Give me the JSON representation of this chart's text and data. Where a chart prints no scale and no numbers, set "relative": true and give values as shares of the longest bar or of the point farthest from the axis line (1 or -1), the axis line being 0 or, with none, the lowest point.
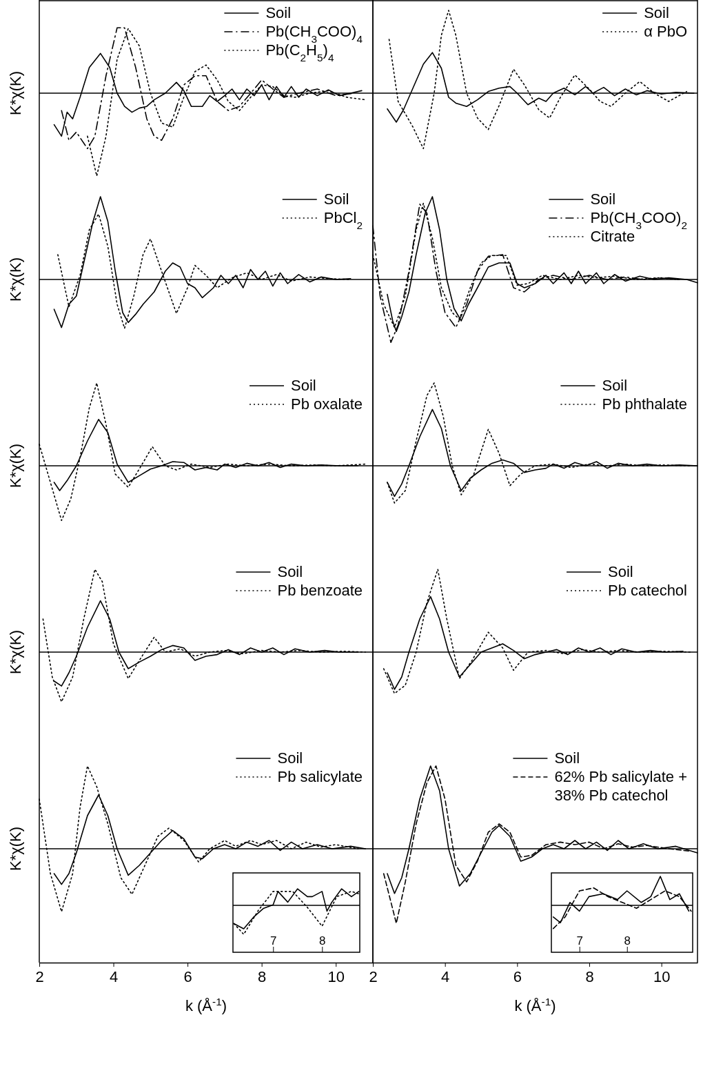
{
  "chart_data": [
    {
      "type": "line",
      "relative": true,
      "ylabel": "K*χ(K)",
      "xlim": [
        2,
        11
      ],
      "tick_labels": false,
      "legend": "top right",
      "series": [
        {
          "name": "Soil",
          "color": "#000000",
          "line_style": "solid",
          "x": [
            2.4,
            2.6,
            2.75,
            2.9,
            3.1,
            3.35,
            3.65,
            3.9,
            4.1,
            4.3,
            4.5,
            4.7,
            4.9,
            5.1,
            5.4,
            5.7,
            5.9,
            6.1,
            6.4,
            6.6,
            6.8,
            7.0,
            7.2,
            7.4,
            7.6,
            7.8,
            8.0,
            8.2,
            8.4,
            8.6,
            8.8,
            9.0,
            9.2,
            9.5,
            9.8,
            10.1,
            10.4,
            10.7
          ],
          "values": [
            -0.38,
            -0.52,
            -0.23,
            -0.31,
            -0.05,
            0.31,
            0.48,
            0.31,
            0,
            -0.16,
            -0.23,
            -0.18,
            -0.16,
            -0.08,
            0,
            0.13,
            0.03,
            -0.16,
            -0.16,
            -0.03,
            -0.1,
            -0.03,
            0.05,
            -0.08,
            0.05,
            -0.03,
            0.1,
            -0.08,
            0.08,
            -0.05,
            0.08,
            -0.05,
            0.05,
            -0.03,
            0.04,
            -0.03,
            0,
            0.03
          ]
        },
        {
          "name": "Pb(CH$_{3}$COO)$_{4}$",
          "color": "#000000",
          "line_style": "dashdot",
          "x": [
            2.6,
            2.8,
            3.0,
            3.3,
            3.5,
            3.8,
            4.1,
            4.3,
            4.6,
            4.9,
            5.1,
            5.3,
            5.6,
            5.9,
            6.2,
            6.5,
            6.8,
            7.1,
            7.4,
            7.8,
            8.0,
            8.3,
            8.6,
            9.0,
            9.5,
            10.0,
            10.5
          ],
          "values": [
            -0.21,
            -0.57,
            -0.47,
            -0.67,
            -0.52,
            0.21,
            0.79,
            0.79,
            0.31,
            -0.31,
            -0.52,
            -0.57,
            -0.31,
            0.1,
            0.21,
            0.21,
            -0.1,
            -0.21,
            -0.16,
            0.05,
            0.16,
            0.05,
            -0.05,
            0,
            0.05,
            -0.03,
            0
          ]
        },
        {
          "name": "Pb(C$_{2}$H$_{5}$)$_{4}$",
          "color": "#000000",
          "line_style": "dotted",
          "x": [
            3.3,
            3.55,
            3.8,
            4.1,
            4.4,
            4.7,
            5.0,
            5.3,
            5.6,
            5.9,
            6.2,
            6.5,
            6.8,
            7.1,
            7.4,
            7.7,
            8.0,
            8.3,
            8.6,
            8.9,
            9.3,
            9.8,
            10.3,
            10.8
          ],
          "values": [
            -0.52,
            -1,
            -0.52,
            0.41,
            0.78,
            0.57,
            0,
            -0.36,
            -0.41,
            -0.05,
            0.26,
            0.34,
            0.16,
            -0.1,
            -0.21,
            -0.05,
            0.1,
            0.08,
            -0.03,
            -0.05,
            0,
            0.03,
            -0.05,
            -0.08
          ]
        }
      ]
    },
    {
      "type": "line",
      "relative": true,
      "xlim": [
        2,
        11
      ],
      "tick_labels": false,
      "legend": "top right",
      "series": [
        {
          "name": "Soil",
          "color": "#000000",
          "line_style": "solid",
          "x": [
            2.4,
            2.65,
            2.85,
            3.1,
            3.4,
            3.65,
            3.9,
            4.1,
            4.3,
            4.6,
            4.9,
            5.2,
            5.5,
            5.8,
            6.0,
            6.3,
            6.6,
            6.8,
            7.0,
            7.3,
            7.6,
            7.9,
            8.1,
            8.4,
            8.7,
            9.0,
            9.3,
            9.6,
            10.0,
            10.4,
            10.9
          ],
          "values": [
            -0.19,
            -0.35,
            -0.2,
            0.05,
            0.35,
            0.49,
            0.3,
            -0.05,
            -0.12,
            -0.16,
            -0.08,
            0.02,
            0.06,
            0.08,
            0,
            -0.14,
            -0.06,
            -0.1,
            0,
            0.06,
            -0.02,
            0.08,
            0,
            0.07,
            -0.03,
            0.05,
            -0.02,
            0.03,
            -0.01,
            0.01,
            0
          ]
        },
        {
          "name": "α PbO",
          "color": "#000000",
          "line_style": "dotted",
          "x": [
            2.45,
            2.7,
            3.1,
            3.4,
            3.7,
            3.9,
            4.1,
            4.3,
            4.6,
            4.9,
            5.2,
            5.5,
            5.9,
            6.2,
            6.6,
            6.9,
            7.2,
            7.6,
            8.0,
            8.3,
            8.6,
            9.0,
            9.4,
            9.8,
            10.2,
            10.7
          ],
          "values": [
            0.65,
            -0.1,
            -0.4,
            -0.67,
            0,
            0.7,
            1,
            0.7,
            0,
            -0.3,
            -0.44,
            -0.15,
            0.29,
            0.1,
            -0.2,
            -0.3,
            -0.05,
            0.22,
            0.05,
            -0.1,
            -0.16,
            0,
            0.14,
            0,
            -0.1,
            0.02
          ]
        }
      ]
    },
    {
      "type": "line",
      "relative": true,
      "ylabel": "K*χ(K)",
      "xlim": [
        2,
        11
      ],
      "tick_labels": false,
      "legend": "top right",
      "series": [
        {
          "name": "Soil",
          "color": "#000000",
          "line_style": "solid",
          "x": [
            2.4,
            2.6,
            2.8,
            3.0,
            3.2,
            3.45,
            3.65,
            3.85,
            4.05,
            4.25,
            4.4,
            4.6,
            4.8,
            5.1,
            5.4,
            5.6,
            5.8,
            6.0,
            6.2,
            6.4,
            6.7,
            6.9,
            7.1,
            7.3,
            7.5,
            7.7,
            7.9,
            8.1,
            8.3,
            8.5,
            8.7,
            9.0,
            9.3,
            9.6,
            10.0,
            10.4
          ],
          "values": [
            -0.36,
            -0.58,
            -0.3,
            -0.2,
            0.2,
            0.7,
            1,
            0.7,
            0.1,
            -0.4,
            -0.52,
            -0.42,
            -0.3,
            -0.15,
            0.1,
            0.2,
            0.15,
            -0.05,
            -0.1,
            -0.22,
            -0.1,
            0.05,
            -0.05,
            0.05,
            -0.1,
            0.12,
            0,
            0.1,
            -0.08,
            0.08,
            -0.05,
            0.06,
            -0.03,
            0.03,
            0,
            0.01
          ]
        },
        {
          "name": "PbCl$_{2}$",
          "color": "#000000",
          "line_style": "dotted",
          "x": [
            2.5,
            2.8,
            3.1,
            3.35,
            3.6,
            3.85,
            4.1,
            4.3,
            4.55,
            4.8,
            5.0,
            5.3,
            5.7,
            6.0,
            6.2,
            6.5,
            6.8,
            7.2,
            7.6,
            8.0,
            8.4,
            8.8,
            9.3,
            9.8,
            10.4
          ],
          "values": [
            0.3,
            -0.33,
            0.05,
            0.6,
            0.79,
            0.4,
            -0.3,
            -0.59,
            -0.2,
            0.3,
            0.49,
            0.1,
            -0.41,
            -0.1,
            0.17,
            0.05,
            -0.1,
            0.02,
            0.08,
            0,
            0.06,
            -0.02,
            0.03,
            0.01,
            0
          ]
        }
      ]
    },
    {
      "type": "line",
      "relative": true,
      "xlim": [
        2,
        11
      ],
      "tick_labels": false,
      "legend": "top right",
      "series": [
        {
          "name": "Soil",
          "color": "#000000",
          "line_style": "solid",
          "x": [
            2.4,
            2.55,
            2.65,
            2.8,
            3.0,
            3.2,
            3.45,
            3.65,
            3.85,
            4.05,
            4.25,
            4.45,
            4.65,
            4.9,
            5.2,
            5.5,
            5.8,
            6.0,
            6.2,
            6.5,
            6.8,
            7.0,
            7.3,
            7.5,
            7.7,
            7.9,
            8.2,
            8.4,
            8.7,
            9.0,
            9.4,
            9.8,
            10.2,
            10.7,
            11.0
          ],
          "values": [
            -0.18,
            -0.5,
            -0.63,
            -0.45,
            -0.15,
            0.3,
            0.8,
            1,
            0.6,
            0,
            -0.35,
            -0.5,
            -0.3,
            -0.1,
            0.15,
            0.2,
            0.2,
            -0.05,
            -0.1,
            -0.05,
            0.05,
            -0.05,
            0.08,
            -0.05,
            0.1,
            -0.05,
            0.08,
            -0.05,
            0.06,
            -0.02,
            0.04,
            0,
            0.02,
            0,
            -0.04
          ]
        },
        {
          "name": "Pb(CH$_{3}$COO)$_{2}$",
          "color": "#000000",
          "line_style": "dashdot",
          "x": [
            2.0,
            2.2,
            2.5,
            2.7,
            3.0,
            3.3,
            3.5,
            3.75,
            4.0,
            4.3,
            4.6,
            4.9,
            5.2,
            5.6,
            5.9,
            6.2,
            6.6,
            7.0,
            7.5,
            8.0,
            8.5,
            9.0,
            9.5,
            10.0,
            10.5
          ],
          "values": [
            0.65,
            -0.2,
            -0.76,
            -0.55,
            0.1,
            0.91,
            0.8,
            0.1,
            -0.4,
            -0.58,
            -0.3,
            0.1,
            0.28,
            0.3,
            -0.1,
            -0.15,
            0,
            0.05,
            0,
            0.05,
            0,
            0.03,
            0,
            0.02,
            0
          ]
        },
        {
          "name": "Citrate",
          "color": "#000000",
          "line_style": "dotted",
          "x": [
            2.0,
            2.3,
            2.6,
            2.9,
            3.2,
            3.4,
            3.65,
            3.9,
            4.2,
            4.4,
            4.7,
            5.0,
            5.3,
            5.7,
            6.0,
            6.3,
            6.7,
            7.2,
            7.7,
            8.2,
            8.7,
            9.3,
            9.9,
            10.5
          ],
          "values": [
            0.3,
            -0.3,
            -0.58,
            -0.2,
            0.6,
            0.92,
            0.5,
            -0.1,
            -0.4,
            -0.48,
            -0.1,
            0.2,
            0.29,
            0.29,
            -0.07,
            -0.05,
            0.05,
            0,
            0.05,
            0.02,
            0.04,
            0,
            0.02,
            0
          ]
        }
      ]
    },
    {
      "type": "line",
      "relative": true,
      "ylabel": "K*χ(K)",
      "xlim": [
        2,
        11
      ],
      "tick_labels": false,
      "legend": "top right",
      "series": [
        {
          "name": "Soil",
          "color": "#000000",
          "line_style": "solid",
          "x": [
            2.4,
            2.55,
            2.75,
            3.0,
            3.3,
            3.6,
            3.85,
            4.1,
            4.4,
            4.7,
            5.0,
            5.3,
            5.6,
            5.9,
            6.2,
            6.5,
            6.8,
            7.0,
            7.3,
            7.6,
            7.9,
            8.2,
            8.5,
            8.8,
            9.2,
            9.6,
            10.1,
            10.6
          ],
          "values": [
            -0.2,
            -0.3,
            -0.18,
            0,
            0.3,
            0.56,
            0.4,
            0.02,
            -0.2,
            -0.12,
            -0.04,
            0,
            0.05,
            0.04,
            -0.05,
            -0.02,
            -0.05,
            0.02,
            -0.02,
            0.03,
            0,
            0.04,
            -0.02,
            0.02,
            0,
            0.01,
            0,
            0
          ]
        },
        {
          "name": "Pb oxalate",
          "color": "#000000",
          "line_style": "dotted",
          "x": [
            2.0,
            2.3,
            2.6,
            2.85,
            3.1,
            3.35,
            3.55,
            3.8,
            4.05,
            4.4,
            4.75,
            5.05,
            5.4,
            5.7,
            6.1,
            6.6,
            7.1,
            7.6,
            8.2,
            8.8,
            9.4,
            10.0,
            10.8
          ],
          "values": [
            0.26,
            -0.2,
            -0.66,
            -0.4,
            0.1,
            0.7,
            1,
            0.5,
            -0.1,
            -0.26,
            0,
            0.23,
            0,
            -0.05,
            0.02,
            -0.02,
            0.02,
            0,
            0.02,
            0,
            0.01,
            0,
            0.02
          ]
        }
      ]
    },
    {
      "type": "line",
      "relative": true,
      "xlim": [
        2,
        11
      ],
      "tick_labels": false,
      "legend": "top right",
      "series": [
        {
          "name": "Soil",
          "color": "#000000",
          "line_style": "solid",
          "x": [
            2.4,
            2.6,
            2.8,
            3.0,
            3.3,
            3.65,
            3.9,
            4.15,
            4.45,
            4.7,
            5.0,
            5.3,
            5.6,
            5.9,
            6.2,
            6.5,
            6.8,
            7.0,
            7.3,
            7.6,
            7.9,
            8.2,
            8.5,
            8.8,
            9.2,
            9.6,
            10.0,
            10.5,
            11.0
          ],
          "values": [
            -0.2,
            -0.37,
            -0.22,
            0,
            0.35,
            0.68,
            0.45,
            0,
            -0.3,
            -0.15,
            -0.05,
            0.03,
            0.07,
            0.03,
            -0.08,
            -0.05,
            -0.03,
            0.02,
            -0.03,
            0.04,
            0,
            0.05,
            -0.03,
            0.03,
            0,
            0.02,
            0,
            0.01,
            0
          ]
        },
        {
          "name": "Pb phthalate",
          "color": "#000000",
          "line_style": "dotted",
          "x": [
            2.4,
            2.6,
            2.9,
            3.2,
            3.5,
            3.7,
            3.95,
            4.2,
            4.45,
            4.8,
            5.2,
            5.5,
            5.8,
            6.1,
            6.5,
            7.0,
            7.5,
            8.0,
            8.5,
            9.0,
            9.5,
            10.0,
            10.8
          ],
          "values": [
            -0.2,
            -0.45,
            -0.3,
            0.3,
            0.85,
            1,
            0.6,
            0,
            -0.35,
            -0.1,
            0.44,
            0.15,
            -0.24,
            -0.1,
            0,
            0.02,
            -0.02,
            0.02,
            0,
            0.02,
            0,
            0.01,
            0
          ]
        }
      ]
    },
    {
      "type": "line",
      "relative": true,
      "ylabel": "K*χ(K)",
      "xlim": [
        2,
        11
      ],
      "tick_labels": false,
      "legend": "top right",
      "series": [
        {
          "name": "Soil",
          "color": "#000000",
          "line_style": "solid",
          "x": [
            2.4,
            2.6,
            2.8,
            3.0,
            3.3,
            3.65,
            3.9,
            4.15,
            4.4,
            4.7,
            5.0,
            5.3,
            5.6,
            5.9,
            6.2,
            6.5,
            6.8,
            7.1,
            7.4,
            7.7,
            8.0,
            8.3,
            8.6,
            8.9,
            9.3,
            9.7,
            10.1,
            10.6
          ],
          "values": [
            -0.35,
            -0.41,
            -0.25,
            -0.05,
            0.3,
            0.62,
            0.4,
            0,
            -0.2,
            -0.12,
            -0.05,
            0.03,
            0.08,
            0.05,
            -0.1,
            -0.05,
            -0.03,
            0.03,
            -0.03,
            0.05,
            0,
            0.05,
            -0.03,
            0.04,
            0,
            0.02,
            0,
            0
          ]
        },
        {
          "name": "Pb benzoate",
          "color": "#000000",
          "line_style": "dotted",
          "x": [
            2.1,
            2.35,
            2.6,
            2.9,
            3.2,
            3.5,
            3.7,
            4.0,
            4.4,
            4.7,
            5.1,
            5.4,
            5.8,
            6.2,
            6.6,
            7.0,
            7.5,
            8.0,
            8.5,
            9.0,
            9.6,
            10.2,
            10.8
          ],
          "values": [
            0.4,
            -0.3,
            -0.6,
            -0.3,
            0.4,
            1,
            0.85,
            0.1,
            -0.32,
            -0.1,
            0.18,
            0,
            0.04,
            -0.05,
            0,
            0.02,
            -0.02,
            0.02,
            0,
            0.02,
            0,
            0.01,
            0
          ]
        }
      ]
    },
    {
      "type": "line",
      "relative": true,
      "xlim": [
        2,
        11
      ],
      "tick_labels": false,
      "legend": "top right",
      "series": [
        {
          "name": "Soil",
          "color": "#000000",
          "line_style": "solid",
          "x": [
            2.4,
            2.6,
            2.8,
            3.0,
            3.3,
            3.6,
            3.85,
            4.1,
            4.4,
            4.7,
            5.0,
            5.3,
            5.6,
            5.9,
            6.2,
            6.5,
            6.8,
            7.1,
            7.4,
            7.7,
            8.0,
            8.3,
            8.6,
            8.9,
            9.3,
            9.7,
            10.1,
            10.6
          ],
          "values": [
            -0.25,
            -0.45,
            -0.3,
            0,
            0.4,
            0.67,
            0.4,
            0,
            -0.3,
            -0.15,
            0,
            0.05,
            0.1,
            0.02,
            -0.08,
            -0.03,
            0,
            0.03,
            -0.03,
            0.05,
            0,
            0.05,
            -0.03,
            0.04,
            0,
            0.02,
            0,
            0.01
          ]
        },
        {
          "name": "Pb catechol",
          "color": "#000000",
          "line_style": "dotted",
          "x": [
            2.3,
            2.6,
            2.9,
            3.2,
            3.5,
            3.8,
            4.05,
            4.4,
            4.75,
            5.2,
            5.6,
            5.9,
            6.3,
            6.8,
            7.3,
            7.8,
            8.3,
            8.8,
            9.4,
            10.0,
            10.8
          ],
          "values": [
            -0.2,
            -0.5,
            -0.4,
            0,
            0.6,
            1,
            0.4,
            -0.32,
            -0.1,
            0.24,
            0.05,
            -0.22,
            0,
            0.02,
            -0.02,
            0.03,
            0,
            0.02,
            0,
            0.01,
            0
          ]
        }
      ]
    },
    {
      "type": "line",
      "relative": true,
      "ylabel": "K*χ(K)",
      "xlabel": "k (Å$^{-1}$)",
      "xlim": [
        2,
        11
      ],
      "xticks": [
        2,
        4,
        6,
        8,
        10
      ],
      "tick_labels": "x",
      "legend": "top right",
      "series": [
        {
          "name": "Soil",
          "color": "#000000",
          "line_style": "solid",
          "x": [
            2.4,
            2.6,
            2.8,
            3.0,
            3.3,
            3.6,
            3.85,
            4.1,
            4.4,
            4.7,
            5.0,
            5.3,
            5.6,
            5.9,
            6.2,
            6.4,
            6.7,
            7.0,
            7.3,
            7.6,
            7.9,
            8.2,
            8.5,
            8.8,
            9.1,
            9.5,
            9.9,
            10.4,
            10.8
          ],
          "values": [
            -0.3,
            -0.43,
            -0.3,
            -0.05,
            0.4,
            0.65,
            0.4,
            0,
            -0.32,
            -0.2,
            -0.05,
            0.1,
            0.22,
            0.12,
            -0.1,
            -0.12,
            0,
            0.05,
            0,
            0.08,
            0.03,
            0.1,
            -0.02,
            0.08,
            0,
            0.05,
            0,
            0.03,
            0
          ]
        },
        {
          "name": "Pb salicylate",
          "color": "#000000",
          "line_style": "dotted",
          "x": [
            2.0,
            2.3,
            2.6,
            2.9,
            3.1,
            3.3,
            3.55,
            3.85,
            4.2,
            4.5,
            4.9,
            5.2,
            5.5,
            5.9,
            6.3,
            6.6,
            7.0,
            7.3,
            7.7,
            8.0,
            8.4,
            8.8,
            9.2,
            9.6,
            10.0,
            10.6
          ],
          "values": [
            0.6,
            -0.3,
            -0.76,
            -0.3,
            0.5,
            1,
            0.75,
            0.3,
            -0.35,
            -0.55,
            -0.15,
            0.15,
            0.25,
            0.1,
            -0.16,
            0,
            0.1,
            0.03,
            0.1,
            0.05,
            0.1,
            0,
            0.08,
            0.02,
            0.05,
            0
          ]
        }
      ]
    },
    {
      "type": "line",
      "relative": true,
      "xlabel": "k (Å$^{-1}$)",
      "xlim": [
        2,
        11
      ],
      "xticks": [
        2,
        4,
        6,
        8,
        10
      ],
      "tick_labels": "x",
      "legend": "top right",
      "series": [
        {
          "name": "Soil",
          "color": "#000000",
          "line_style": "solid",
          "x": [
            2.4,
            2.6,
            2.8,
            3.0,
            3.3,
            3.6,
            3.85,
            4.1,
            4.4,
            4.7,
            5.0,
            5.3,
            5.5,
            5.8,
            6.1,
            6.4,
            6.7,
            7.0,
            7.3,
            7.6,
            7.9,
            8.2,
            8.5,
            8.8,
            9.1,
            9.5,
            9.9,
            10.4,
            11.0
          ],
          "values": [
            -0.3,
            -0.54,
            -0.35,
            0,
            0.6,
            1,
            0.7,
            0,
            -0.45,
            -0.3,
            -0.05,
            0.2,
            0.28,
            0.15,
            -0.15,
            -0.1,
            0,
            0.05,
            0,
            0.1,
            0,
            0.08,
            -0.02,
            0.1,
            0,
            0.06,
            0,
            0.03,
            -0.05
          ]
        },
        {
          "name": "62% Pb salicylate + 38% Pb catechol",
          "color": "#000000",
          "line_style": "dashed",
          "x": [
            2.3,
            2.65,
            2.9,
            3.2,
            3.5,
            3.75,
            4.0,
            4.3,
            4.6,
            4.9,
            5.2,
            5.5,
            5.8,
            6.1,
            6.4,
            6.8,
            7.2,
            7.6,
            8.0,
            8.4,
            8.8,
            9.2,
            9.6,
            10.2,
            10.8
          ],
          "values": [
            -0.3,
            -0.9,
            -0.4,
            0.3,
            0.8,
            1,
            0.6,
            -0.2,
            -0.4,
            -0.15,
            0.2,
            0.3,
            0.2,
            -0.1,
            -0.08,
            0.05,
            0.08,
            0.05,
            0.08,
            0,
            0.06,
            0.02,
            0.04,
            0,
            -0.03
          ]
        }
      ]
    },
    {
      "type": "line",
      "relative": true,
      "xlim": [
        6.18,
        8.77
      ],
      "xticks": [
        7,
        8
      ],
      "tick_labels": "x",
      "series": [
        {
          "color": "#000000",
          "line_style": "solid",
          "x": [
            6.2,
            6.4,
            6.6,
            6.8,
            7.0,
            7.1,
            7.3,
            7.5,
            7.7,
            7.8,
            8.0,
            8.1,
            8.2,
            8.4,
            8.6,
            8.75
          ],
          "values": [
            -0.63,
            -0.81,
            -0.41,
            -0.11,
            0.02,
            0.48,
            0.11,
            0.57,
            0.3,
            0.3,
            0.48,
            -0.2,
            0.11,
            0.57,
            0.3,
            0.48
          ]
        },
        {
          "color": "#000000",
          "line_style": "dotted",
          "x": [
            6.2,
            6.4,
            6.7,
            7.0,
            7.4,
            7.7,
            8.0,
            8.3,
            8.6,
            8.75
          ],
          "values": [
            -0.63,
            -1,
            -0.17,
            0.48,
            0.48,
            -0.07,
            -0.72,
            0.3,
            0.48,
            0.4
          ]
        }
      ]
    },
    {
      "type": "line",
      "relative": true,
      "xlim": [
        6.41,
        9.38
      ],
      "xticks": [
        7,
        8
      ],
      "tick_labels": "x",
      "series": [
        {
          "color": "#000000",
          "line_style": "solid",
          "x": [
            6.45,
            6.6,
            6.8,
            7.0,
            7.2,
            7.5,
            7.8,
            8.0,
            8.3,
            8.5,
            8.7,
            8.9,
            9.1,
            9.3
          ],
          "values": [
            -0.4,
            -0.6,
            0.1,
            -0.2,
            0.3,
            0.4,
            0.2,
            0.5,
            0.1,
            0.3,
            1,
            0.2,
            0.4,
            -0.2
          ]
        },
        {
          "color": "#000000",
          "line_style": "dashed",
          "x": [
            6.45,
            6.7,
            7.0,
            7.3,
            7.6,
            7.9,
            8.2,
            8.5,
            8.8,
            9.1,
            9.35
          ],
          "values": [
            -0.8,
            -0.4,
            0.5,
            0.6,
            0.3,
            0.1,
            -0.1,
            0.2,
            0.5,
            0.3,
            -0.2
          ]
        }
      ]
    }
  ]
}
